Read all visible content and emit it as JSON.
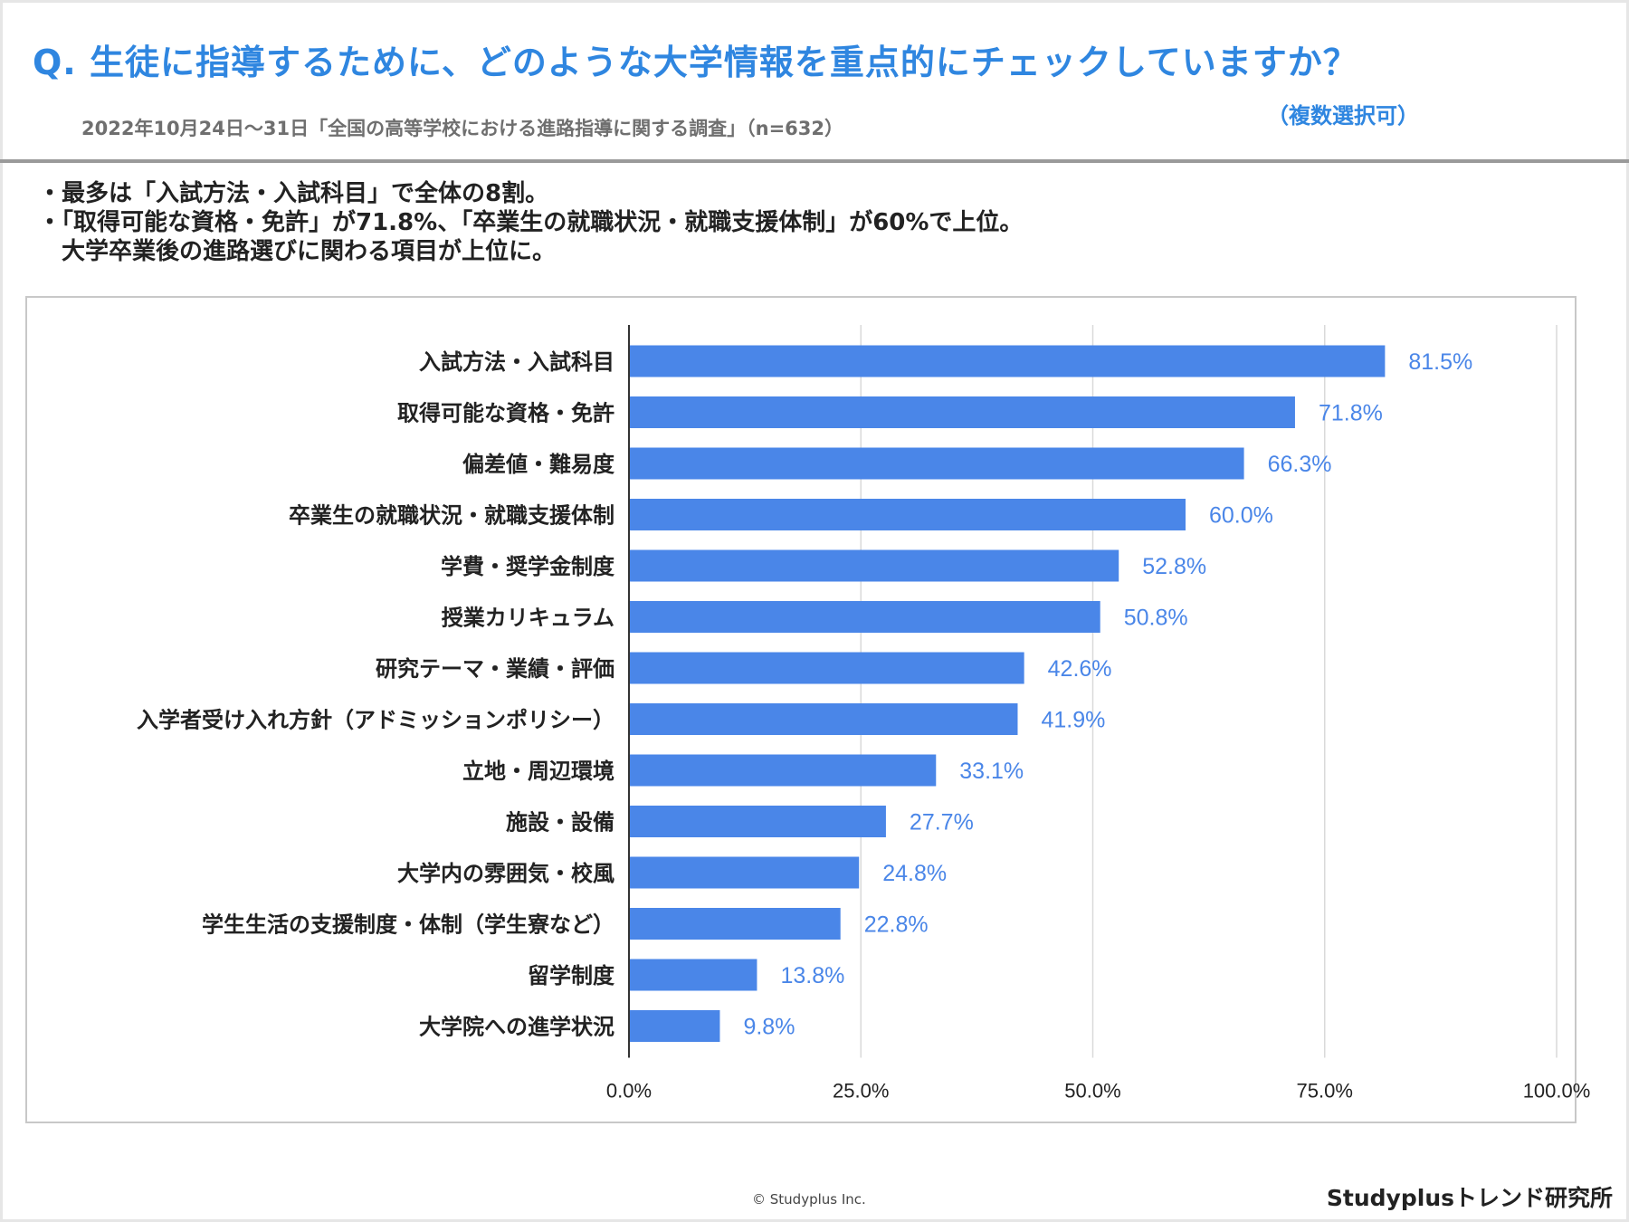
{
  "header": {
    "title": "Q. 生徒に指導するために、どのような大学情報を重点的にチェックしていますか？",
    "subtitle": "2022年10月24日～31日「全国の高等学校における進路指導に関する調査」（n=632）",
    "multiple_choice_note": "（複数選択可）"
  },
  "summary": {
    "line1": "・最多は「入試方法・入試科目」で全体の8割。",
    "line2": "・「取得可能な資格・免許」が71.8%、「卒業生の就職状況・就職支援体制」が60%で上位。",
    "line3": "　大学卒業後の進路選びに関わる項目が上位に。"
  },
  "chart_data": {
    "type": "bar",
    "orientation": "horizontal",
    "categories": [
      "入試方法・入試科目",
      "取得可能な資格・免許",
      "偏差値・難易度",
      "卒業生の就職状況・就職支援体制",
      "学費・奨学金制度",
      "授業カリキュラム",
      "研究テーマ・業績・評価",
      "入学者受け入れ方針（アドミッションポリシー）",
      "立地・周辺環境",
      "施設・設備",
      "大学内の雰囲気・校風",
      "学生生活の支援制度・体制（学生寮など）",
      "留学制度",
      "大学院への進学状況"
    ],
    "values": [
      81.5,
      71.8,
      66.3,
      60.0,
      52.8,
      50.8,
      42.6,
      41.9,
      33.1,
      27.7,
      24.8,
      22.8,
      13.8,
      9.8
    ],
    "value_labels": [
      "81.5%",
      "71.8%",
      "66.3%",
      "60.0%",
      "52.8%",
      "50.8%",
      "42.6%",
      "41.9%",
      "33.1%",
      "27.7%",
      "24.8%",
      "22.8%",
      "13.8%",
      "9.8%"
    ],
    "xlim": [
      0,
      100
    ],
    "xticks": [
      0,
      25,
      50,
      75,
      100
    ],
    "xtick_labels": [
      "0.0%",
      "25.0%",
      "50.0%",
      "75.0%",
      "100.0%"
    ],
    "grid": true,
    "bar_color": "#4a86e8",
    "label_color": "#4a86e8",
    "title": "",
    "xlabel": "",
    "ylabel": ""
  },
  "footer": {
    "copyright": "© Studyplus Inc.",
    "brand": "Studyplusトレンド研究所"
  }
}
